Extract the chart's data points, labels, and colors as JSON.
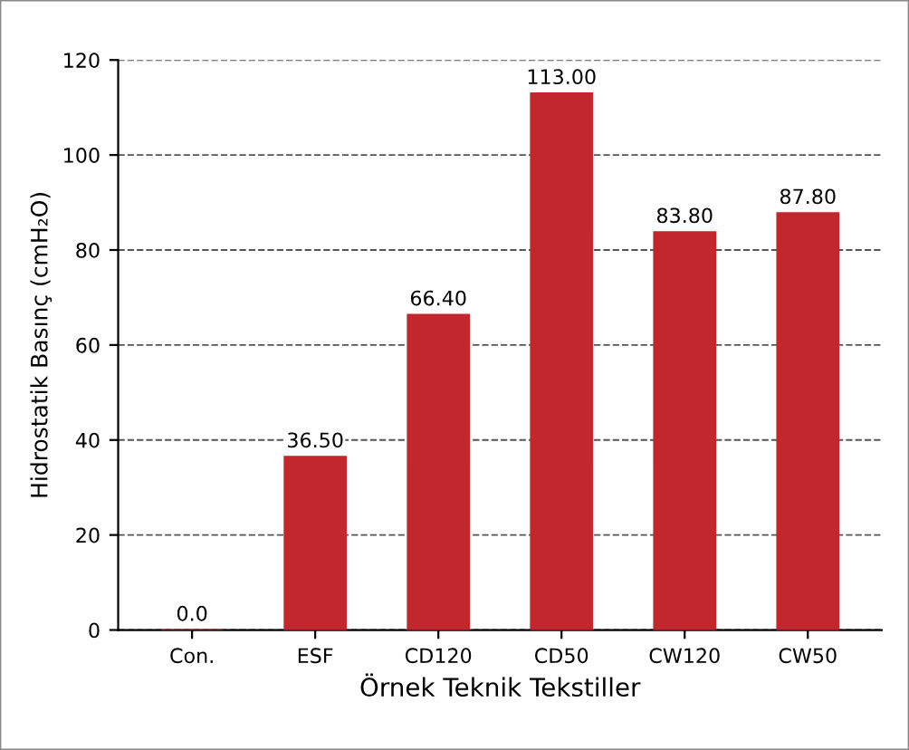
{
  "chart_data": {
    "type": "bar",
    "xlabel": "Örnek Teknik Tekstiller",
    "ylabel": "Hidrostatik Basınç (cmH₂O)",
    "categories": [
      "Con.",
      "ESF",
      "CD120",
      "CD50",
      "CW120",
      "CW50"
    ],
    "values": [
      0.0,
      36.5,
      66.4,
      113.0,
      83.8,
      87.8
    ],
    "value_labels": [
      "0.0",
      "36.50",
      "66.40",
      "113.00",
      "83.80",
      "87.80"
    ],
    "color": "#c1272d",
    "ylim": [
      0,
      120
    ],
    "yticks": [
      0,
      20,
      40,
      60,
      80,
      100,
      120
    ],
    "grid": "y",
    "line_style": "dashed"
  }
}
